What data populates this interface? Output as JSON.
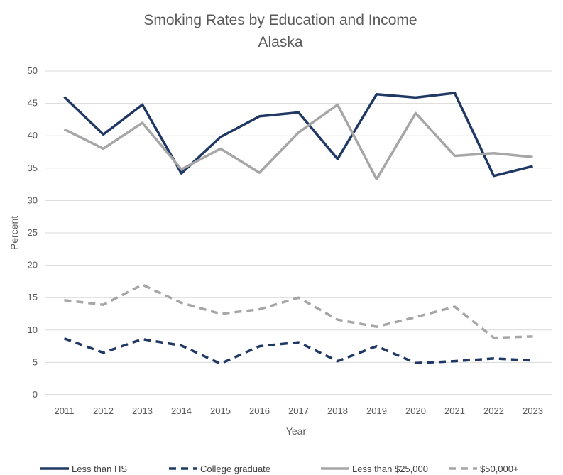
{
  "chart_data": {
    "type": "line",
    "title": "Smoking Rates by Education and Income",
    "subtitle": "Alaska",
    "xlabel": "Year",
    "ylabel": "Percent",
    "ylim": [
      0,
      50
    ],
    "yticks": [
      0,
      5,
      10,
      15,
      20,
      25,
      30,
      35,
      40,
      45,
      50
    ],
    "categories": [
      "2011",
      "2012",
      "2013",
      "2014",
      "2015",
      "2016",
      "2017",
      "2018",
      "2019",
      "2020",
      "2021",
      "2022",
      "2023"
    ],
    "grid": true,
    "legend_position": "bottom",
    "series": [
      {
        "name": "Less than HS",
        "color": "#1f3864",
        "dashed": false,
        "values": [
          46.0,
          40.2,
          44.8,
          34.2,
          39.8,
          43.0,
          43.6,
          36.4,
          46.4,
          45.9,
          46.6,
          33.8,
          35.3
        ]
      },
      {
        "name": "College graduate",
        "color": "#1f3864",
        "dashed": true,
        "values": [
          8.7,
          6.5,
          8.6,
          7.6,
          4.8,
          7.5,
          8.1,
          5.2,
          7.5,
          4.9,
          5.2,
          5.6,
          5.3
        ]
      },
      {
        "name": "Less than $25,000",
        "color": "#a6a6a6",
        "dashed": false,
        "values": [
          41.0,
          38.0,
          42.0,
          34.8,
          38.0,
          34.3,
          40.5,
          44.8,
          33.3,
          43.5,
          36.9,
          37.3,
          36.7
        ]
      },
      {
        "name": "$50,000+",
        "color": "#a6a6a6",
        "dashed": true,
        "values": [
          14.6,
          13.9,
          17.0,
          14.2,
          12.5,
          13.2,
          15.0,
          11.6,
          10.5,
          12.0,
          13.6,
          8.8,
          9.0
        ]
      }
    ]
  }
}
